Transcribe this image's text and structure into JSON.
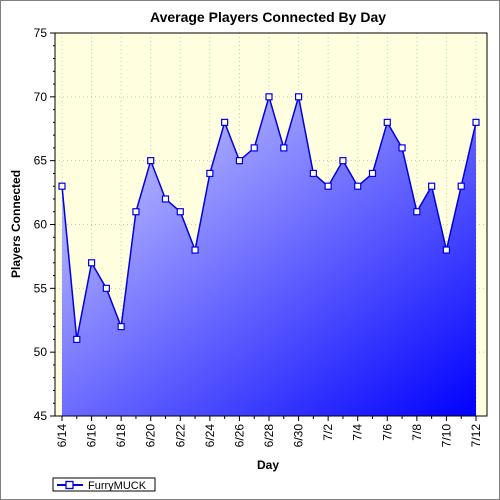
{
  "chart_data": {
    "type": "area",
    "title": "Average Players Connected By Day",
    "xlabel": "Day",
    "ylabel": "Players Connected",
    "ylim": [
      45,
      75
    ],
    "yticks": [
      45,
      50,
      55,
      60,
      65,
      70,
      75
    ],
    "grid": true,
    "legend_position": "bottom-left",
    "x": [
      "6/14",
      "6/15",
      "6/16",
      "6/17",
      "6/18",
      "6/19",
      "6/20",
      "6/21",
      "6/22",
      "6/23",
      "6/24",
      "6/25",
      "6/26",
      "6/27",
      "6/28",
      "6/29",
      "6/30",
      "7/1",
      "7/2",
      "7/3",
      "7/4",
      "7/5",
      "7/6",
      "7/7",
      "7/8",
      "7/9",
      "7/10",
      "7/11",
      "7/12"
    ],
    "x_tick_labels": [
      "6/14",
      "6/16",
      "6/18",
      "6/20",
      "6/22",
      "6/24",
      "6/26",
      "6/28",
      "6/30",
      "7/2",
      "7/4",
      "7/6",
      "7/8",
      "7/10",
      "7/12"
    ],
    "series": [
      {
        "name": "FurryMUCK",
        "values": [
          63,
          51,
          57,
          55,
          52,
          61,
          65,
          62,
          61,
          58,
          64,
          68,
          65,
          66,
          70,
          66,
          70,
          64,
          63,
          65,
          63,
          64,
          68,
          66,
          61,
          63,
          58,
          63,
          68
        ]
      }
    ],
    "colors": {
      "line": "#0000e0",
      "marker_fill": "#ffffff",
      "plot_bg": "#ffffe0",
      "area_light": "#d8d8ff",
      "area_dark": "#0000ff"
    }
  }
}
